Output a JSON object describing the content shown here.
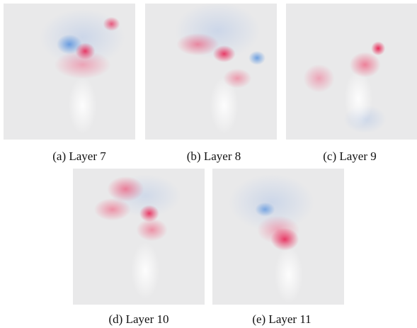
{
  "figure": {
    "panels": [
      {
        "caption": "(a) Layer 7"
      },
      {
        "caption": "(b) Layer 8"
      },
      {
        "caption": "(c) Layer 9"
      },
      {
        "caption": "(d) Layer 10"
      },
      {
        "caption": "(e) Layer 11"
      }
    ]
  }
}
